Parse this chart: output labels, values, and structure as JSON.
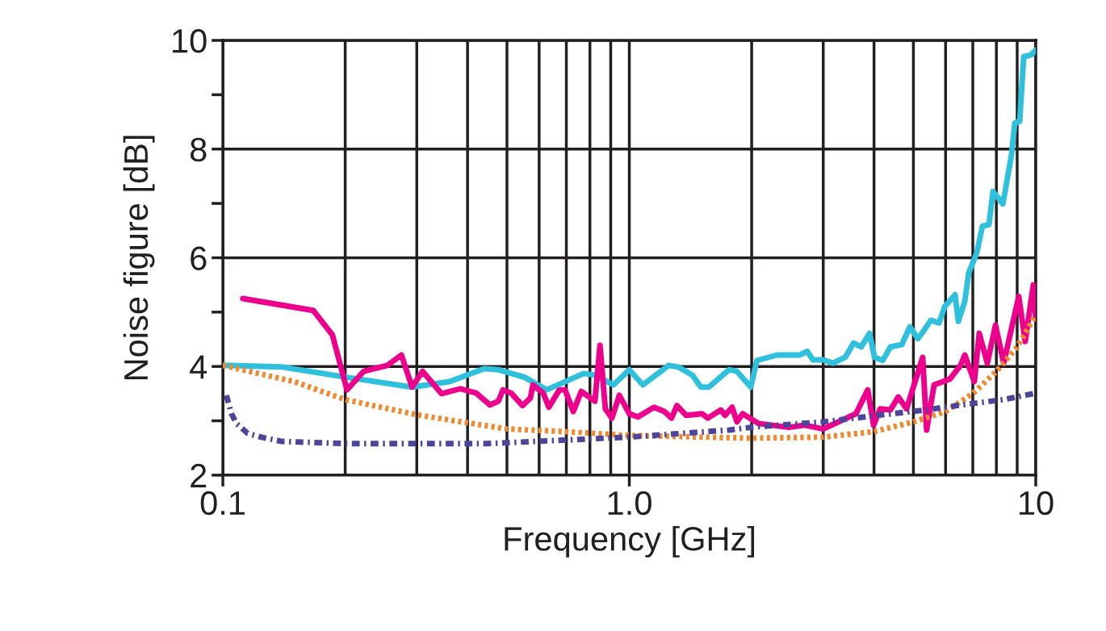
{
  "chart_data": {
    "type": "line",
    "xlabel": "Frequency [GHz]",
    "ylabel": "Noise figure [dB]",
    "log": "x",
    "xlim": [
      0.1,
      10
    ],
    "ylim": [
      2,
      10
    ],
    "xticks": [
      {
        "value": 0.1,
        "label": "0.1"
      },
      {
        "value": 0.2,
        "label": null
      },
      {
        "value": 0.3,
        "label": null
      },
      {
        "value": 0.4,
        "label": null
      },
      {
        "value": 0.5,
        "label": null
      },
      {
        "value": 0.6,
        "label": null
      },
      {
        "value": 0.7,
        "label": null
      },
      {
        "value": 0.8,
        "label": null
      },
      {
        "value": 0.9,
        "label": null
      },
      {
        "value": 1,
        "label": "1.0"
      },
      {
        "value": 2,
        "label": null
      },
      {
        "value": 3,
        "label": null
      },
      {
        "value": 4,
        "label": null
      },
      {
        "value": 5,
        "label": null
      },
      {
        "value": 6,
        "label": null
      },
      {
        "value": 7,
        "label": null
      },
      {
        "value": 8,
        "label": null
      },
      {
        "value": 9,
        "label": null
      },
      {
        "value": 10,
        "label": "10"
      }
    ],
    "yticks": [
      2,
      {
        "value": 3,
        "label": null
      },
      4,
      {
        "value": 5,
        "label": null
      },
      6,
      {
        "value": 7,
        "label": null
      },
      8,
      {
        "value": 9,
        "label": null
      },
      10
    ],
    "grid": true,
    "marker": "none",
    "series": [
      {
        "color": "#2ec0dc",
        "line_style": "solid",
        "x": [
          0.1,
          0.14,
          0.202,
          0.292,
          0.361,
          0.44,
          0.476,
          0.553,
          0.626,
          0.772,
          0.823,
          0.914,
          1.0,
          1.08,
          1.25,
          1.32,
          1.43,
          1.5,
          1.57,
          1.76,
          1.84,
          1.99,
          2.06,
          2.31,
          2.62,
          2.74,
          2.83,
          3.0,
          3.17,
          3.4,
          3.56,
          3.72,
          3.9,
          4.01,
          4.2,
          4.39,
          4.68,
          4.9,
          5.13,
          5.27,
          5.52,
          5.78,
          5.97,
          6.33,
          6.45,
          6.69,
          6.84,
          7.16,
          7.39,
          7.67,
          7.85,
          8.3,
          8.71,
          8.88,
          9.13,
          9.34,
          9.73,
          10
        ],
        "values": [
          4.02,
          3.99,
          3.8,
          3.62,
          3.72,
          3.96,
          3.94,
          3.8,
          3.57,
          3.87,
          3.84,
          3.66,
          3.94,
          3.66,
          4.02,
          3.99,
          3.84,
          3.62,
          3.62,
          3.94,
          3.91,
          3.62,
          4.11,
          4.21,
          4.21,
          4.28,
          4.12,
          4.12,
          4.06,
          4.17,
          4.43,
          4.36,
          4.61,
          4.17,
          4.11,
          4.36,
          4.4,
          4.73,
          4.51,
          4.63,
          4.85,
          4.8,
          5.1,
          5.32,
          4.83,
          5.2,
          5.72,
          6.09,
          6.58,
          6.61,
          7.22,
          6.99,
          7.88,
          8.48,
          8.51,
          9.7,
          9.73,
          9.82
        ]
      },
      {
        "color": "#ec008c",
        "line_style": "solid",
        "x": [
          0.112,
          0.167,
          0.186,
          0.202,
          0.222,
          0.254,
          0.275,
          0.292,
          0.31,
          0.345,
          0.384,
          0.42,
          0.454,
          0.476,
          0.489,
          0.512,
          0.546,
          0.571,
          0.579,
          0.614,
          0.634,
          0.673,
          0.695,
          0.728,
          0.762,
          0.823,
          0.847,
          0.873,
          0.906,
          0.945,
          1.0,
          1.05,
          1.15,
          1.22,
          1.27,
          1.31,
          1.38,
          1.51,
          1.56,
          1.68,
          1.72,
          1.79,
          1.84,
          1.9,
          2.08,
          2.47,
          2.7,
          3.0,
          3.61,
          3.86,
          3.99,
          4.14,
          4.39,
          4.59,
          4.81,
          5.27,
          5.39,
          5.62,
          6.15,
          6.53,
          6.69,
          7.06,
          7.26,
          7.6,
          7.96,
          8.34,
          9.08,
          9.42,
          9.86,
          10
        ],
        "values": [
          5.25,
          5.03,
          4.58,
          3.57,
          3.91,
          4.02,
          4.21,
          3.62,
          3.91,
          3.5,
          3.59,
          3.51,
          3.29,
          3.36,
          3.57,
          3.51,
          3.28,
          3.42,
          3.66,
          3.51,
          3.25,
          3.57,
          3.57,
          3.17,
          3.54,
          3.36,
          4.39,
          3.22,
          3.05,
          3.47,
          3.13,
          3.07,
          3.25,
          3.17,
          3.05,
          3.28,
          3.1,
          3.13,
          3.05,
          3.2,
          3.1,
          3.25,
          2.98,
          3.13,
          2.95,
          2.88,
          2.92,
          2.85,
          3.13,
          3.57,
          2.92,
          3.22,
          3.2,
          3.44,
          3.22,
          4.17,
          2.83,
          3.66,
          3.77,
          4.02,
          4.21,
          3.72,
          4.61,
          4.06,
          4.76,
          4.06,
          5.29,
          4.46,
          5.5,
          4.88
        ]
      },
      {
        "color": "#f08a30",
        "line_style": "dotted",
        "x": [
          0.1,
          0.15,
          0.2,
          0.3,
          0.5,
          0.7,
          1.0,
          2.0,
          3.0,
          4.0,
          5.0,
          6.0,
          7.0,
          8.0,
          9.0,
          10
        ],
        "values": [
          4.02,
          3.72,
          3.39,
          3.11,
          2.85,
          2.8,
          2.73,
          2.68,
          2.7,
          2.8,
          2.98,
          3.17,
          3.5,
          3.91,
          4.36,
          4.95
        ]
      },
      {
        "color": "#4b469b",
        "line_style": "dashdot",
        "x": [
          0.102,
          0.105,
          0.108,
          0.115,
          0.124,
          0.14,
          0.202,
          0.446,
          1.0,
          1.76,
          1.99,
          3.0,
          4.08,
          5.37,
          6.53,
          8.34,
          10
        ],
        "values": [
          3.47,
          3.13,
          2.95,
          2.77,
          2.7,
          2.62,
          2.58,
          2.58,
          2.7,
          2.83,
          2.88,
          2.98,
          3.1,
          3.2,
          3.29,
          3.39,
          3.51
        ]
      }
    ]
  }
}
